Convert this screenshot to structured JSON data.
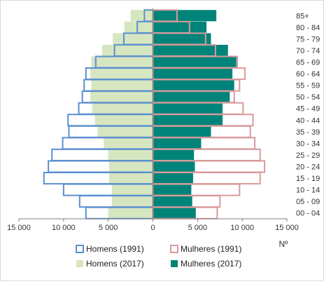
{
  "chart_data": {
    "type": "bar",
    "orientation": "horizontal",
    "subtype": "population-pyramid",
    "categories": [
      "85+",
      "80 - 84",
      "75 - 79",
      "70 - 74",
      "65 - 69",
      "60 - 64",
      "55 - 59",
      "50 - 54",
      "45 - 49",
      "40 - 44",
      "35 - 39",
      "30 - 34",
      "25 - 29",
      "20 - 24",
      "15 - 19",
      "10 - 14",
      "05 - 09",
      "00 - 04"
    ],
    "series": [
      {
        "name": "Homens (1991)",
        "side": "left",
        "style": "outline",
        "color": "#5b8fd0",
        "values": [
          950,
          1750,
          3250,
          4300,
          6400,
          7500,
          7700,
          7900,
          8300,
          9500,
          9400,
          10100,
          11300,
          11700,
          12200,
          10000,
          8200,
          7500
        ]
      },
      {
        "name": "Mulheres (1991)",
        "side": "right",
        "style": "outline",
        "color": "#d99a9a",
        "values": [
          2700,
          4100,
          5900,
          7000,
          9400,
          10300,
          9700,
          9100,
          10100,
          11200,
          10900,
          11400,
          12000,
          12500,
          12000,
          9700,
          7500,
          7200
        ]
      },
      {
        "name": "Homens (2017)",
        "side": "left",
        "style": "fill",
        "color": "#d6e6c0",
        "values": [
          2500,
          3200,
          4500,
          5700,
          6900,
          7000,
          6900,
          7000,
          6800,
          6500,
          6200,
          5500,
          5000,
          4900,
          4900,
          4600,
          4600,
          5000
        ]
      },
      {
        "name": "Mulheres (2017)",
        "side": "right",
        "style": "fill",
        "color": "#00847a",
        "values": [
          7100,
          6000,
          6500,
          8400,
          9500,
          8900,
          9100,
          8600,
          7800,
          7800,
          6500,
          5400,
          4600,
          4700,
          4500,
          4300,
          4400,
          4800
        ]
      }
    ],
    "x_ticks": [
      "15 000",
      "10 000",
      "5 000",
      "0",
      "5 000",
      "10 000",
      "15 000"
    ],
    "xlabel": "Nº",
    "xlim": [
      -15000,
      15000
    ],
    "grid": false,
    "legend_position": "bottom"
  }
}
